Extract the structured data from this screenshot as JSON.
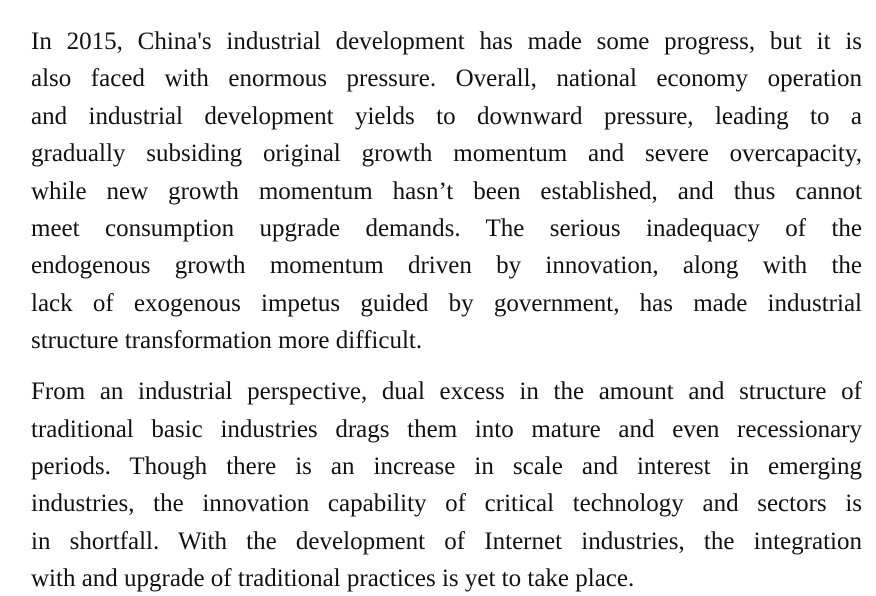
{
  "paragraphs": [
    {
      "lines": [
        "In 2015, China's industrial development has made some progress, but it is",
        "also faced with enormous pressure. Overall, national economy operation",
        "and industrial development yields to downward pressure, leading to a",
        "gradually subsiding original growth momentum and severe overcapacity,",
        "while new growth momentum hasn’t been established, and thus cannot",
        "meet consumption upgrade demands. The serious inadequacy of the",
        "endogenous growth momentum driven by innovation, along with the",
        "lack of exogenous impetus guided by government, has made industrial",
        "structure transformation more difficult."
      ]
    },
    {
      "lines": [
        "From an industrial perspective, dual excess in the amount and structure of",
        "traditional basic industries drags them into mature and even recessionary",
        "periods. Though there is an increase in scale and interest in emerging",
        "industries, the innovation capability of critical technology and sectors is",
        "in shortfall. With the development of Internet industries, the integration",
        "with and upgrade of traditional practices is yet to take place."
      ]
    }
  ]
}
